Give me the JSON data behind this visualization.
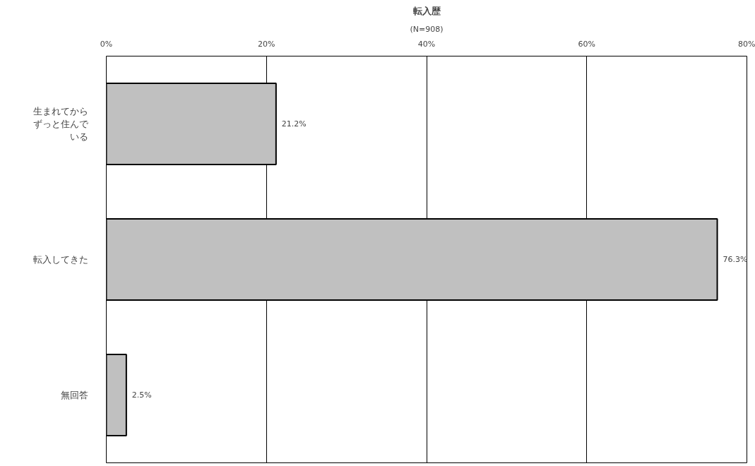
{
  "chart_data": {
    "type": "bar",
    "orientation": "horizontal",
    "title": "転入歴",
    "subtitle": "(N=908)",
    "categories": [
      "生まれてからずっと住んでいる",
      "転入してきた",
      "無回答"
    ],
    "values": [
      21.2,
      76.3,
      2.5
    ],
    "value_labels": [
      "21.2%",
      "76.3%",
      "2.5%"
    ],
    "color": "#c0c0c0",
    "xlim": [
      0,
      80
    ],
    "xticks": [
      {
        "value": 0,
        "label": "0%"
      },
      {
        "value": 20,
        "label": "20%"
      },
      {
        "value": 40,
        "label": "40%"
      },
      {
        "value": 60,
        "label": "60%"
      },
      {
        "value": 80,
        "label": "80%"
      }
    ],
    "grid": "x"
  }
}
